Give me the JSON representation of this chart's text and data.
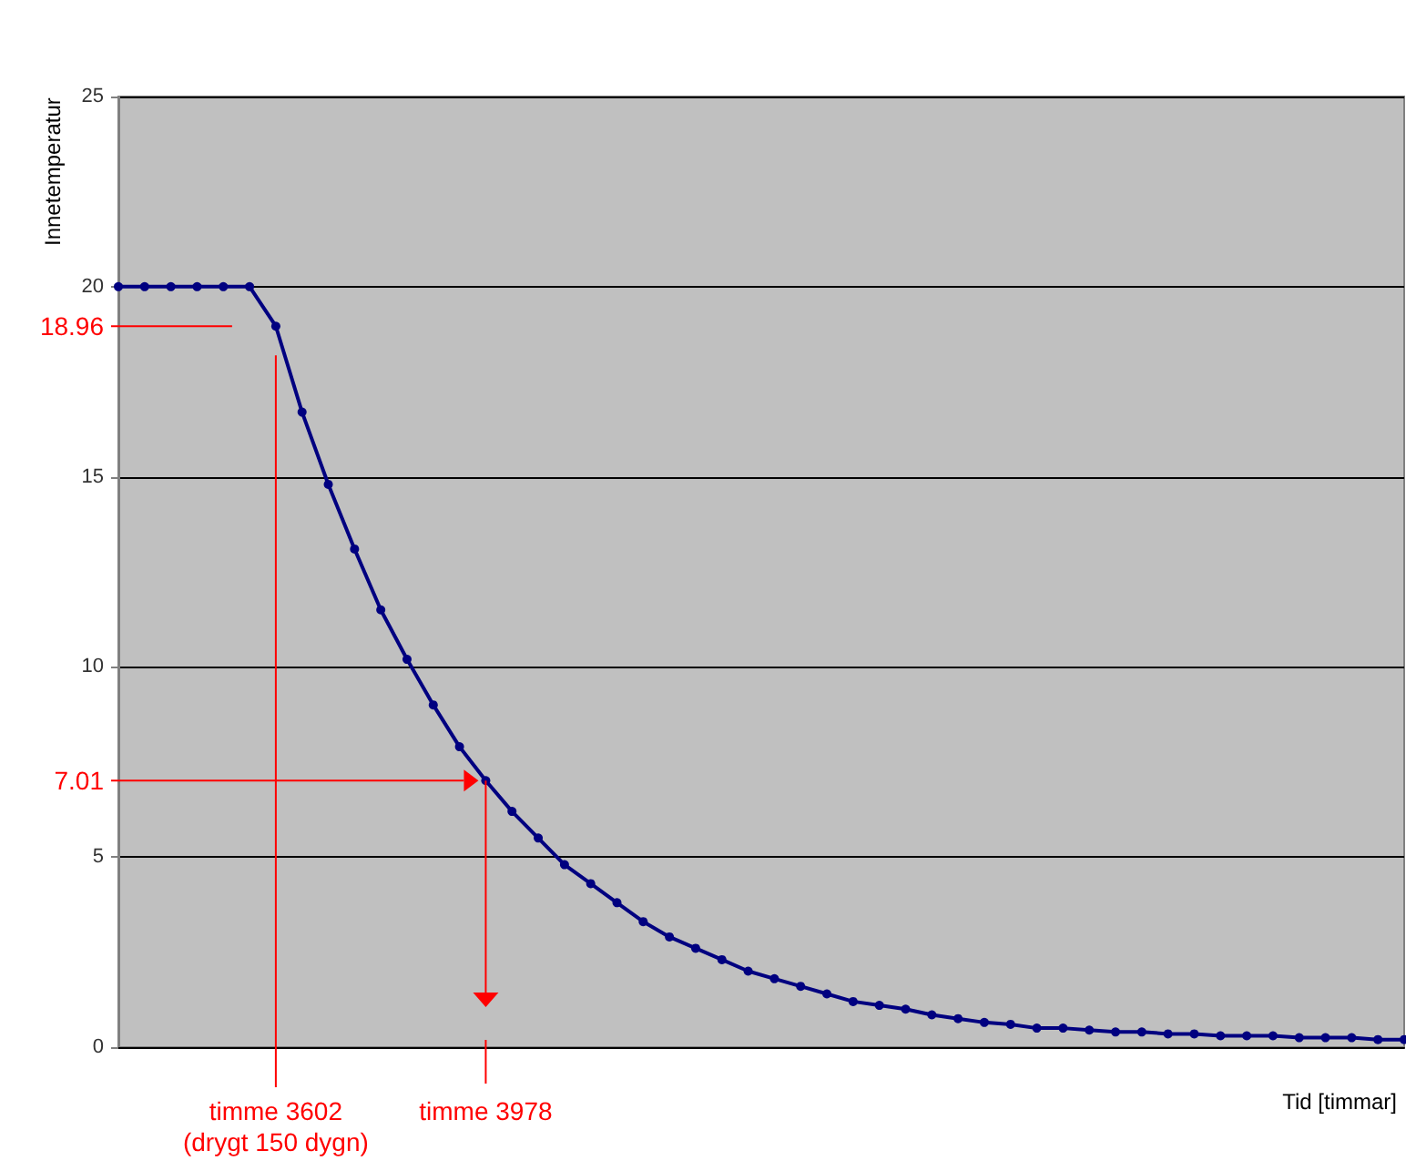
{
  "chart_data": {
    "type": "line",
    "xlabel": "Tid [timmar]",
    "ylabel": "Innetemperatur",
    "tick_labels": "y",
    "grid": "y",
    "marker": "circle",
    "categories": [
      null,
      null,
      null,
      null,
      null,
      null,
      null,
      null,
      null,
      null,
      null,
      null,
      null,
      null,
      null,
      null,
      null,
      null,
      null,
      null,
      null,
      null,
      null,
      null,
      null,
      null,
      null,
      null,
      null,
      null,
      null,
      null,
      null,
      null,
      null,
      null,
      null,
      null,
      null,
      null,
      null,
      null,
      null,
      null,
      null,
      null,
      null,
      null,
      null,
      null
    ],
    "ylim": [
      0,
      25
    ],
    "yticks": [
      0,
      5,
      10,
      15,
      20,
      25
    ],
    "series": [
      {
        "color": "#000080",
        "values": [
          20,
          20,
          20,
          20,
          20,
          20,
          18.96,
          16.7,
          14.8,
          13.1,
          11.5,
          10.2,
          9.0,
          7.9,
          7.01,
          6.2,
          5.5,
          4.8,
          4.3,
          3.8,
          3.3,
          2.9,
          2.6,
          2.3,
          2.0,
          1.8,
          1.6,
          1.4,
          1.2,
          1.1,
          1.0,
          0.85,
          0.75,
          0.65,
          0.6,
          0.5,
          0.5,
          0.45,
          0.4,
          0.4,
          0.35,
          0.35,
          0.3,
          0.3,
          0.3,
          0.25,
          0.25,
          0.25,
          0.2,
          0.2
        ]
      }
    ],
    "ref_lines": [
      {
        "axis": "y",
        "value": 18.96,
        "label": "18.96",
        "color": "#ff0000"
      },
      {
        "axis": "y",
        "value": 7.01,
        "label": "7.01",
        "color": "#ff0000"
      }
    ],
    "annotations": [
      "timme 3602\n(drygt 150 dygn)",
      "timme 3978"
    ]
  }
}
